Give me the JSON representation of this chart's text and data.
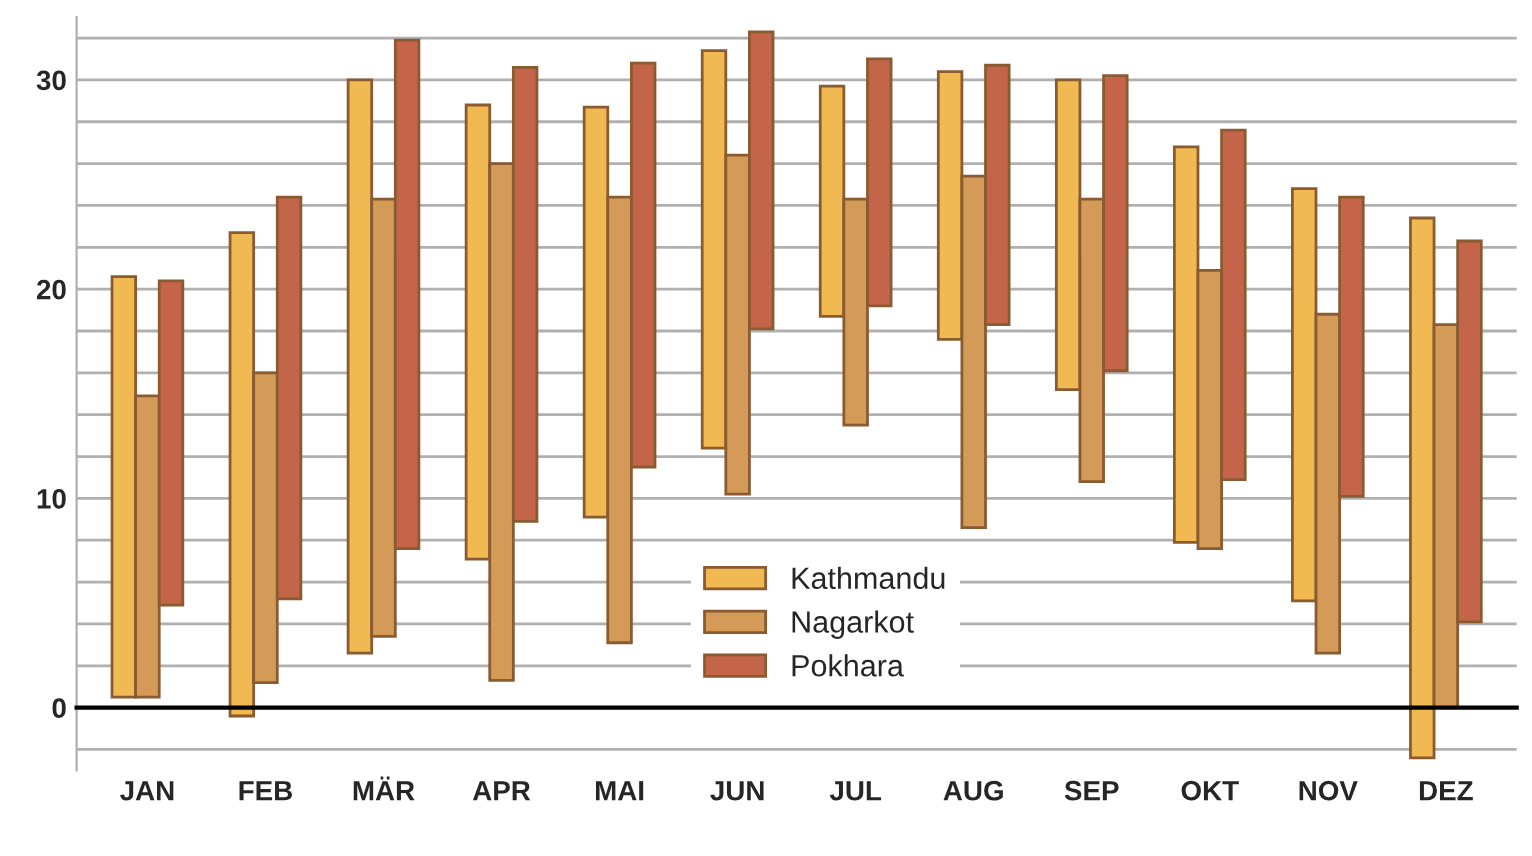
{
  "chart_data": {
    "type": "bar",
    "categories": [
      "JAN",
      "FEB",
      "MÄR",
      "APR",
      "MAI",
      "JUN",
      "JUL",
      "AUG",
      "SEP",
      "OKT",
      "NOV",
      "DEZ"
    ],
    "series": [
      {
        "name": "Kathmandu",
        "color": "#f0b952",
        "base": [
          0.5,
          -0.4,
          2.6,
          7.1,
          9.1,
          12.4,
          18.7,
          17.6,
          15.2,
          7.9,
          5.1,
          -2.4
        ],
        "values": [
          20.1,
          23.1,
          27.4,
          21.7,
          19.6,
          19.0,
          11.0,
          12.8,
          14.8,
          18.9,
          19.7,
          25.8
        ]
      },
      {
        "name": "Nagarkot",
        "color": "#d39a58",
        "base": [
          0.5,
          1.2,
          3.4,
          1.3,
          3.1,
          10.2,
          13.5,
          8.6,
          10.8,
          7.6,
          2.6,
          0.0
        ],
        "values": [
          14.4,
          14.8,
          20.9,
          24.7,
          21.3,
          16.2,
          10.8,
          16.8,
          13.5,
          13.3,
          16.2,
          18.3
        ]
      },
      {
        "name": "Pokhara",
        "color": "#c4654a",
        "base": [
          4.9,
          5.2,
          7.6,
          8.9,
          11.5,
          18.1,
          19.2,
          18.3,
          16.1,
          10.9,
          10.1,
          4.1
        ],
        "values": [
          15.5,
          19.2,
          24.3,
          21.7,
          19.3,
          14.2,
          11.8,
          12.4,
          14.1,
          16.7,
          14.3,
          18.2
        ]
      }
    ],
    "ylim": [
      -3,
      33
    ],
    "yticks": [
      {
        "value": -2,
        "label": null
      },
      0,
      {
        "value": 2,
        "label": null
      },
      {
        "value": 4,
        "label": null
      },
      {
        "value": 6,
        "label": null
      },
      {
        "value": 8,
        "label": null
      },
      10,
      {
        "value": 12,
        "label": null
      },
      {
        "value": 14,
        "label": null
      },
      {
        "value": 16,
        "label": null
      },
      {
        "value": 18,
        "label": null
      },
      20,
      {
        "value": 22,
        "label": null
      },
      {
        "value": 24,
        "label": null
      },
      {
        "value": 26,
        "label": null
      },
      {
        "value": 28,
        "label": null
      },
      30,
      {
        "value": 32,
        "label": null
      }
    ],
    "grid": "y",
    "legend": "bottom"
  }
}
